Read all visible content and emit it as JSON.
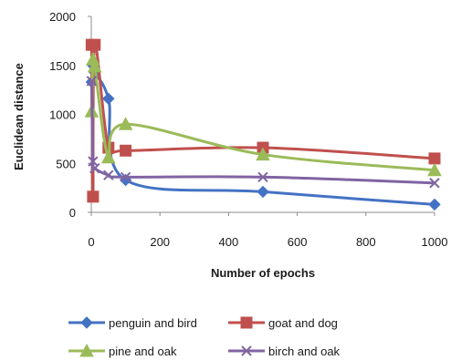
{
  "chart_data": {
    "type": "line",
    "title": "",
    "xlabel": "Number of epochs",
    "ylabel": "Euclidean distance",
    "xlim": [
      0,
      1000
    ],
    "ylim": [
      0,
      2000
    ],
    "x_ticks": [
      "0",
      "200",
      "400",
      "600",
      "800",
      "1000"
    ],
    "y_ticks": [
      "0",
      "500",
      "1000",
      "1500",
      "2000"
    ],
    "grid": false,
    "legend_position": "bottom",
    "series": [
      {
        "name": "penguin and bird",
        "color": "#4472c4",
        "marker": "diamond",
        "x": [
          1,
          5,
          10,
          50,
          100,
          500,
          1000
        ],
        "y": [
          1330,
          1500,
          1430,
          1160,
          330,
          210,
          80
        ]
      },
      {
        "name": "goat and dog",
        "color": "#c0504d",
        "marker": "square",
        "x": [
          1,
          5,
          10,
          50,
          100,
          500,
          1000
        ],
        "y": [
          1710,
          160,
          1710,
          660,
          630,
          660,
          550
        ]
      },
      {
        "name": "pine and oak",
        "color": "#9bbb59",
        "marker": "triangle",
        "x": [
          1,
          5,
          10,
          50,
          100,
          500,
          1000
        ],
        "y": [
          1030,
          1560,
          1490,
          560,
          900,
          590,
          430
        ]
      },
      {
        "name": "birch and oak",
        "color": "#8064a2",
        "marker": "x",
        "x": [
          1,
          5,
          10,
          50,
          100,
          500,
          1000
        ],
        "y": [
          1340,
          520,
          450,
          380,
          360,
          360,
          300
        ]
      }
    ]
  }
}
